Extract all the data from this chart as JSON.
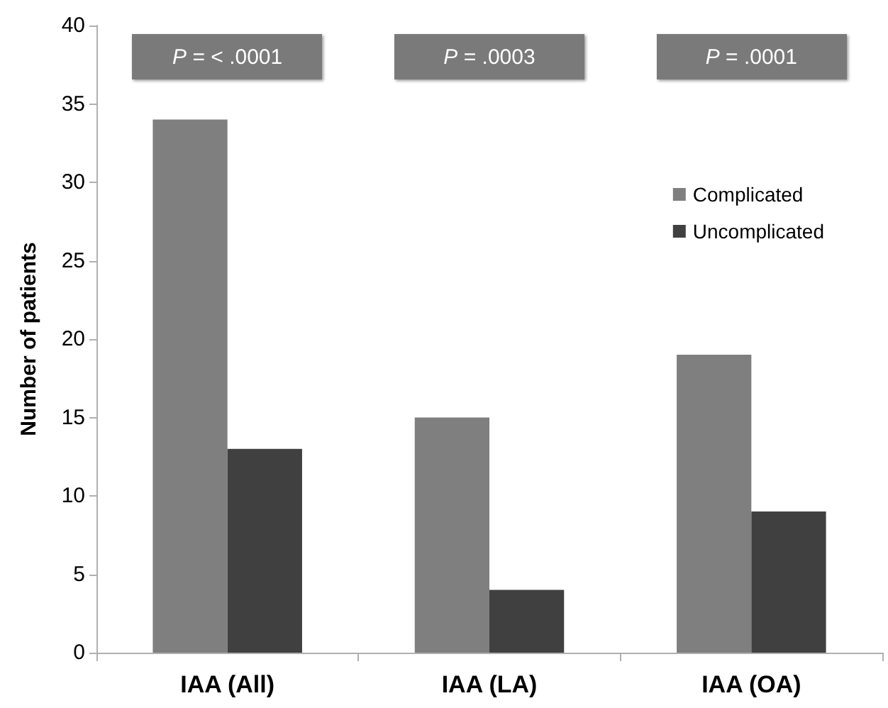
{
  "chart_data": {
    "type": "bar",
    "ylabel": "Number of patients",
    "categories": [
      "IAA (All)",
      "IAA (LA)",
      "IAA (OA)"
    ],
    "series": [
      {
        "name": "Complicated",
        "color": "#7f7f7f",
        "values": [
          34,
          15,
          19
        ]
      },
      {
        "name": "Uncomplicated",
        "color": "#404040",
        "values": [
          13,
          4,
          9
        ]
      }
    ],
    "ylim": [
      0,
      40
    ],
    "yticks": [
      0,
      5,
      10,
      15,
      20,
      25,
      30,
      35,
      40
    ],
    "grid": false,
    "legend": "top right",
    "annotations": [
      "P = < .0001",
      "P = .0003",
      "P = .0001"
    ]
  }
}
